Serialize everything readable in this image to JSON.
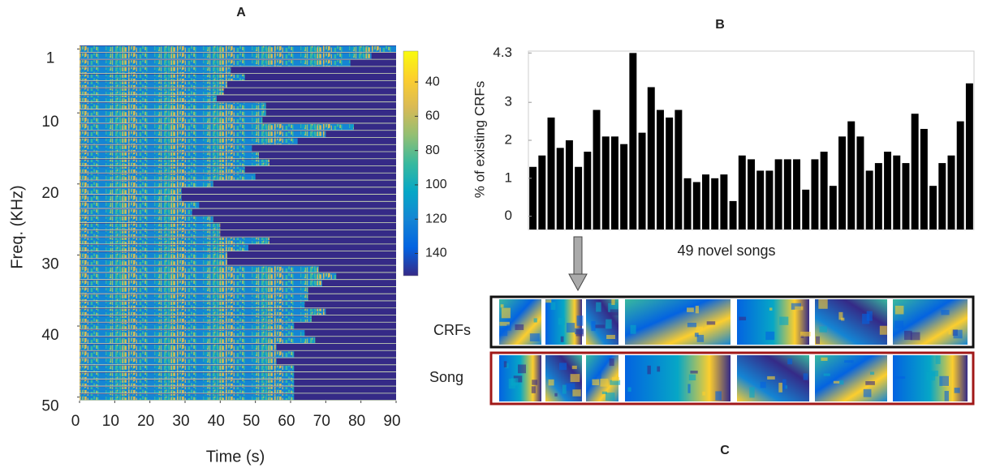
{
  "chart_data": [
    {
      "type": "heatmap",
      "title": "A",
      "xlabel": "Time (s)",
      "ylabel": "Freq. (KHz)",
      "values": [
        90,
        83,
        77,
        43,
        47,
        42,
        41,
        39,
        53,
        53,
        52,
        78,
        70,
        62,
        49,
        51,
        54,
        47,
        50,
        38,
        29,
        29,
        34,
        32,
        38,
        40,
        40,
        54,
        48,
        42,
        42,
        68,
        73,
        69,
        65,
        65,
        64,
        70,
        66,
        61,
        64,
        67,
        56,
        61,
        56,
        61,
        61,
        61,
        61,
        61
      ],
      "xlim": [
        0,
        90
      ],
      "xticks": [
        0,
        10,
        20,
        30,
        40,
        50,
        60,
        70,
        80,
        90
      ],
      "ylim": [
        0.5,
        50.5
      ],
      "yticks": [
        1,
        10,
        20,
        30,
        40,
        50
      ],
      "clim": [
        22,
        153
      ],
      "cticks": [
        40,
        60,
        80,
        100,
        120,
        140
      ],
      "colormap": [
        "#f9fb0e",
        "#fcce2e",
        "#d9ba56",
        "#92bf73",
        "#38b99e",
        "#06a7c6",
        "#1485d4",
        "#0363e1",
        "#352a87"
      ]
    },
    {
      "type": "bar",
      "title": "B",
      "xlabel": "49 novel songs",
      "ylabel": "% of existing CRFs",
      "color": "#000000",
      "values": [
        1.3,
        1.6,
        2.6,
        1.8,
        2.0,
        1.3,
        1.7,
        2.8,
        2.1,
        2.1,
        1.9,
        4.3,
        2.2,
        3.4,
        2.8,
        2.6,
        2.8,
        1.0,
        0.9,
        1.1,
        1.0,
        1.1,
        0.4,
        1.6,
        1.5,
        1.2,
        1.2,
        1.5,
        1.5,
        1.5,
        0.7,
        1.5,
        1.7,
        0.8,
        2.1,
        2.5,
        2.1,
        1.2,
        1.4,
        1.7,
        1.6,
        1.4,
        2.7,
        2.3,
        0.8,
        1.4,
        1.6,
        2.5,
        3.5
      ],
      "ylim": [
        -0.35,
        4.35
      ],
      "yticks": [
        0,
        1,
        2,
        3,
        4.3
      ]
    }
  ],
  "panel_c": {
    "label": "C",
    "rows": [
      "CRFs",
      "Song"
    ]
  }
}
